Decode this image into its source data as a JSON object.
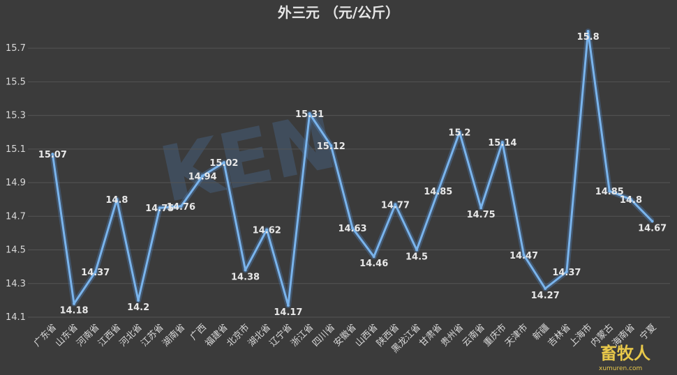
{
  "chart_data": {
    "type": "line",
    "title": "外三元 （元/公斤）",
    "xlabel": "",
    "ylabel": "",
    "ylim": [
      14.1,
      15.8
    ],
    "yticks": [
      "14.1",
      "14.3",
      "14.5",
      "14.7",
      "14.9",
      "15.1",
      "15.3",
      "15.5",
      "15.7"
    ],
    "grid": true,
    "categories": [
      "广东省",
      "山东省",
      "河南省",
      "江西省",
      "河北省",
      "江苏省",
      "湖南省",
      "广西",
      "福建省",
      "北京市",
      "湖北省",
      "辽宁省",
      "浙江省",
      "四川省",
      "安徽省",
      "山西省",
      "陕西省",
      "黑龙江省",
      "甘肃省",
      "贵州省",
      "云南省",
      "重庆市",
      "天津市",
      "新疆",
      "吉林省",
      "上海市",
      "内蒙古",
      "海南省",
      "宁夏"
    ],
    "series": [
      {
        "values": [
          15.07,
          14.18,
          14.37,
          14.8,
          14.2,
          14.75,
          14.76,
          14.94,
          15.02,
          14.38,
          14.62,
          14.17,
          15.31,
          15.12,
          14.63,
          14.46,
          14.77,
          14.5,
          14.85,
          15.2,
          14.75,
          15.14,
          14.47,
          14.27,
          14.37,
          15.8,
          14.85,
          14.8,
          14.67
        ],
        "labels": [
          "15.07",
          "14.18",
          "14.37",
          "14.8",
          "14.2",
          "14.75",
          "14.76",
          "14.94",
          "15.02",
          "14.38",
          "14.62",
          "14.17",
          "15.31",
          "15.12",
          "14.63",
          "14.46",
          "14.77",
          "14.5",
          "14.85",
          "15.2",
          "14.75",
          "15.14",
          "14.47",
          "14.27",
          "14.37",
          "15.8",
          "14.85",
          "14.8",
          "14.67"
        ]
      }
    ],
    "colors": {
      "line": "#7ab4ec",
      "background": "#3b3b3b"
    }
  },
  "watermark": {
    "text": "KEN",
    "text2": "畜牧人",
    "url": "xumuren.com"
  }
}
